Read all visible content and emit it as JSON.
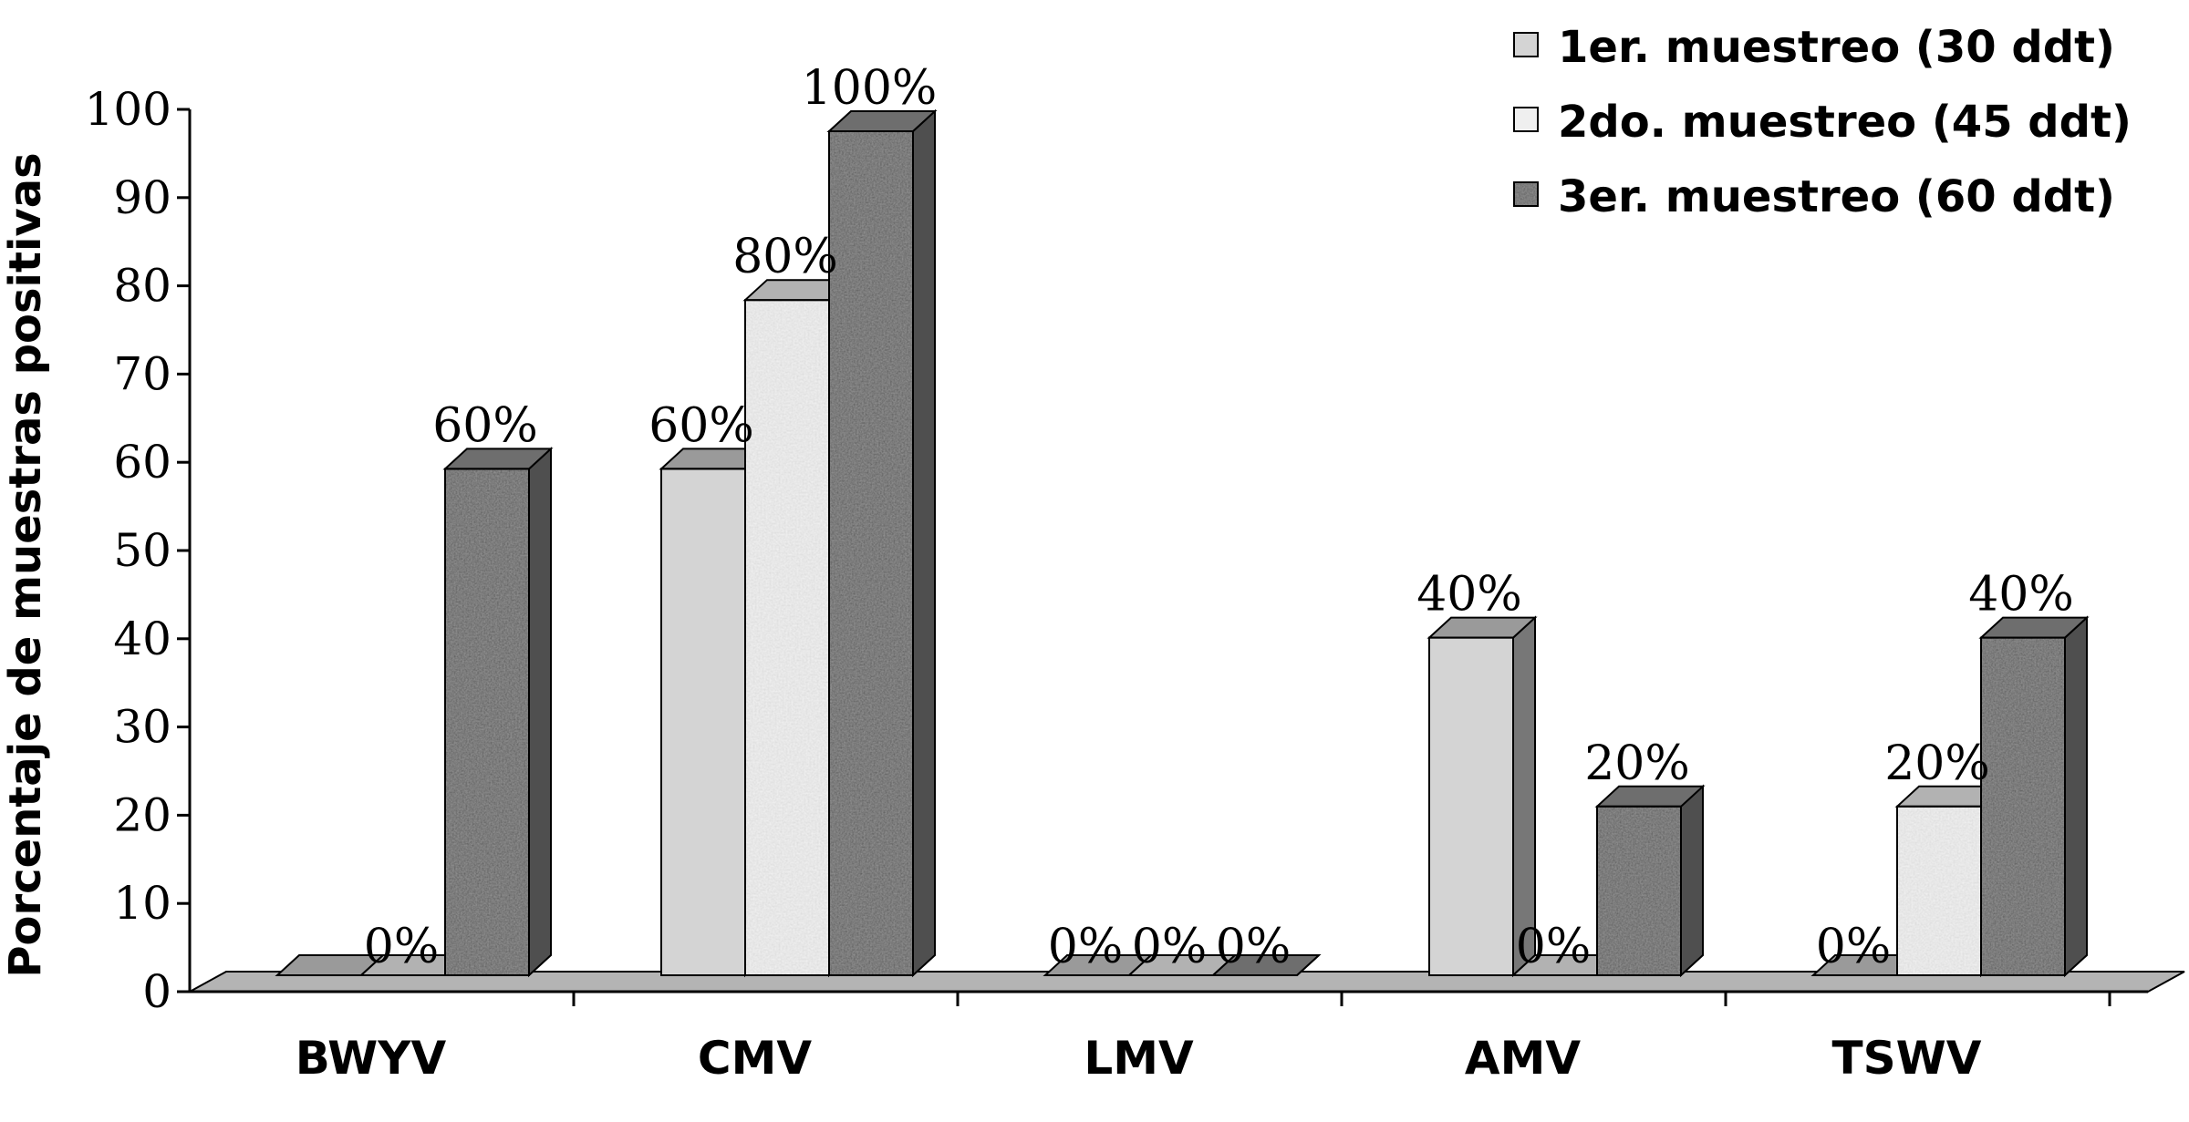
{
  "chart_data": {
    "type": "bar",
    "ylabel": "Porcentaje de muestras positivas",
    "xlabel": "",
    "ylim": [
      0,
      100
    ],
    "yticks": [
      0,
      10,
      20,
      30,
      40,
      50,
      60,
      70,
      80,
      90,
      100
    ],
    "categories": [
      "BWYV",
      "CMV",
      "LMV",
      "AMV",
      "TSWV"
    ],
    "series": [
      {
        "name": "1er. muestreo (30 ddt)",
        "values": [
          0,
          60,
          0,
          40,
          0
        ],
        "labels": [
          "",
          "60%",
          "0%",
          "40%",
          "0%"
        ],
        "front": "#d4d4d4",
        "top": "#9a9a9a",
        "side": "#777777"
      },
      {
        "name": "2do. muestreo (45 ddt)",
        "values": [
          0,
          80,
          0,
          0,
          20
        ],
        "labels": [
          "0%",
          "80%",
          "0%",
          "0%",
          "20%"
        ],
        "front": "#efefef",
        "top": "#b2b2b2",
        "side": "#8a8a8a"
      },
      {
        "name": "3er. muestreo (60 ddt)",
        "values": [
          60,
          100,
          0,
          20,
          40
        ],
        "labels": [
          "60%",
          "100%",
          "0%",
          "20%",
          "40%"
        ],
        "front": "#909090",
        "top": "#6e6e6e",
        "side": "#4f4f4f"
      }
    ],
    "grid": false,
    "style": "3d-clustered",
    "legend_position": "top-right",
    "floor_color": "#b4b4b4"
  }
}
